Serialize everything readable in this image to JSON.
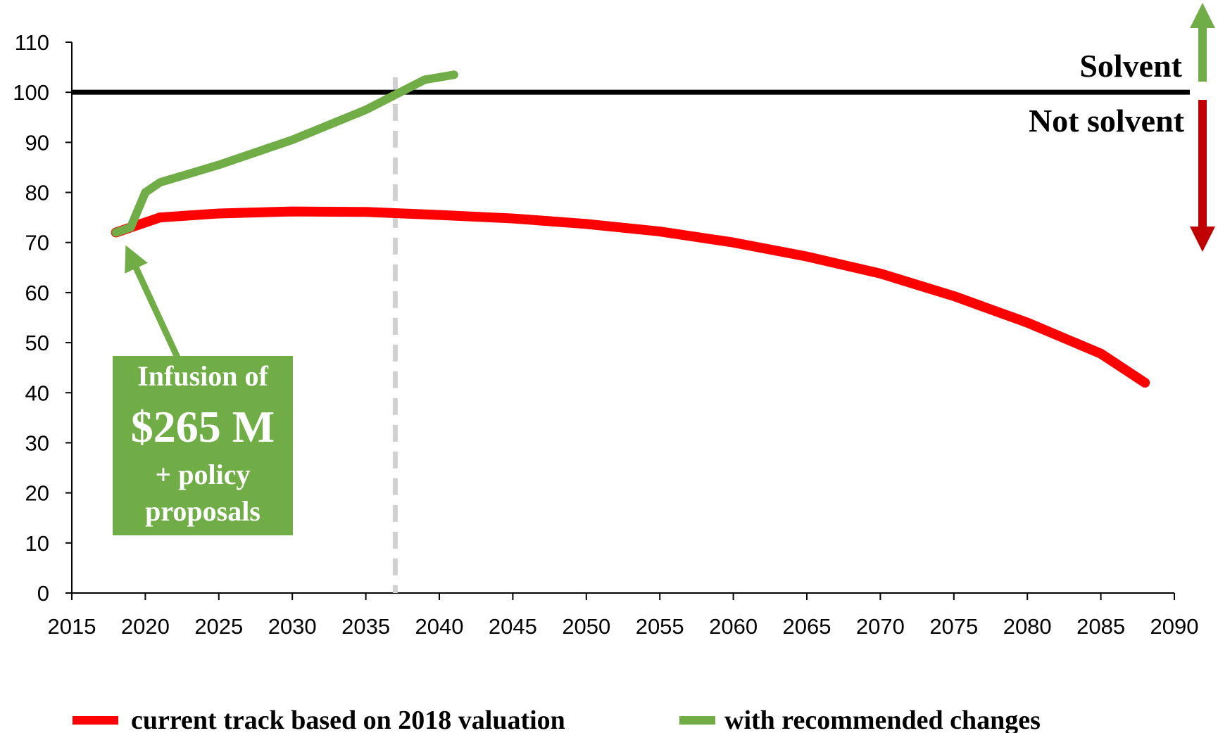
{
  "chart_data": {
    "type": "line",
    "xlim": [
      2015,
      2090
    ],
    "xticks": [
      2015,
      2020,
      2025,
      2030,
      2035,
      2040,
      2045,
      2050,
      2055,
      2060,
      2065,
      2070,
      2075,
      2080,
      2085,
      2090
    ],
    "ylim": [
      0,
      110
    ],
    "yticks": [
      0,
      10,
      20,
      30,
      40,
      50,
      60,
      70,
      80,
      90,
      100,
      110
    ],
    "grid": false,
    "legend": "bottom",
    "series": [
      {
        "name": "current track based on 2018 valuation",
        "color": "#ff0000",
        "x": [
          2018,
          2019,
          2021,
          2025,
          2030,
          2035,
          2040,
          2045,
          2050,
          2055,
          2060,
          2065,
          2070,
          2075,
          2080,
          2085,
          2088
        ],
        "values": [
          72,
          73,
          75,
          75.8,
          76.2,
          76.1,
          75.5,
          74.8,
          73.7,
          72.2,
          70,
          67.2,
          63.8,
          59.3,
          54,
          47.8,
          42
        ]
      },
      {
        "name": "with recommended changes",
        "color": "#70ad47",
        "x": [
          2018,
          2019,
          2020,
          2021,
          2025,
          2030,
          2035,
          2037,
          2039,
          2041
        ],
        "values": [
          72,
          73,
          80,
          82,
          85.5,
          90.5,
          96.5,
          99.5,
          102.5,
          103.5
        ]
      }
    ],
    "reference_line": {
      "y": 100,
      "color": "#000000"
    },
    "vertical_line": {
      "x": 2037,
      "color": "#d0d0d0"
    },
    "annotations": {
      "solvent": "Solvent",
      "not_solvent": "Not solvent",
      "box_lines": [
        "Infusion of",
        "$265 M",
        "+ policy",
        "proposals"
      ],
      "box_color": "#70ad47"
    }
  }
}
